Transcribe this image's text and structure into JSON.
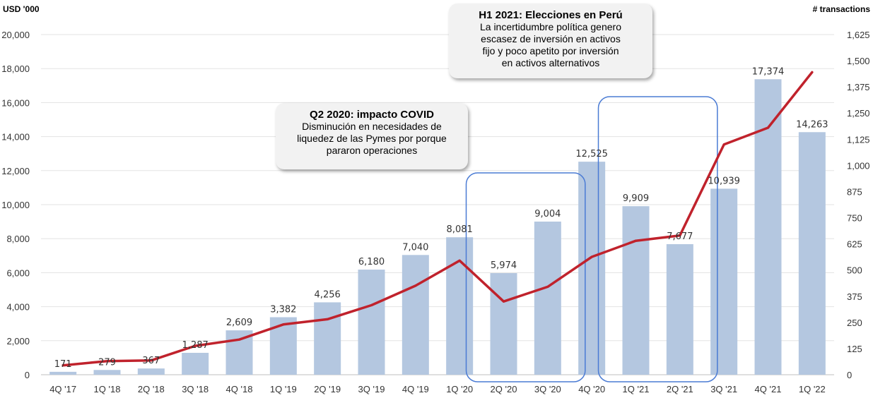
{
  "chart_data": {
    "type": "bar",
    "left_axis_label": "USD '000",
    "right_axis_label": "# transactions",
    "categories": [
      "4Q '17",
      "1Q '18",
      "2Q '18",
      "3Q '18",
      "4Q '18",
      "1Q '19",
      "2Q '19",
      "3Q '19",
      "4Q '19",
      "1Q '20",
      "2Q '20",
      "3Q '20",
      "4Q '20",
      "1Q '21",
      "2Q '21",
      "3Q '21",
      "4Q '21",
      "1Q '22"
    ],
    "series": [
      {
        "type": "bar",
        "axis": "left",
        "color": "#b4c7e0",
        "values": [
          171,
          279,
          367,
          1287,
          2609,
          3382,
          4256,
          6180,
          7040,
          8081,
          5974,
          9004,
          12525,
          9909,
          7677,
          10939,
          17374,
          14263
        ],
        "labels": [
          "171",
          "279",
          "367",
          "1,287",
          "2,609",
          "3,382",
          "4,256",
          "6,180",
          "7,040",
          "8,081",
          "5,974",
          "9,004",
          "12,525",
          "9,909",
          "7,677",
          "10,939",
          "17,374",
          "14,263"
        ]
      },
      {
        "type": "line",
        "axis": "right",
        "color": "#c0222c",
        "values": [
          45,
          65,
          68,
          138,
          168,
          240,
          265,
          332,
          425,
          545,
          350,
          420,
          563,
          640,
          665,
          1100,
          1180,
          1445
        ]
      }
    ],
    "y_left": {
      "min": 0,
      "max": 20000,
      "ticks": [
        "0",
        "2,000",
        "4,000",
        "6,000",
        "8,000",
        "10,000",
        "12,000",
        "14,000",
        "16,000",
        "18,000",
        "20,000"
      ]
    },
    "y_right": {
      "min": 0,
      "max": 1625,
      "ticks": [
        "0",
        "125",
        "250",
        "375",
        "500",
        "625",
        "750",
        "875",
        "1,000",
        "1,125",
        "1,250",
        "1,375",
        "1,500",
        "1,625"
      ]
    },
    "grid": true,
    "highlight_color": "#4a7bd4",
    "highlight_groups": [
      [
        "2Q '20",
        "3Q '20"
      ],
      [
        "1Q '21",
        "2Q '21"
      ]
    ]
  },
  "annotations": {
    "covid": {
      "title": "Q2 2020: impacto COVID",
      "lines": [
        "Disminución en necesidades de",
        "liquedez de las Pymes por porque",
        "pararon operaciones"
      ]
    },
    "elections": {
      "title": "H1 2021: Elecciones en Perú",
      "lines": [
        "La incertidumbre política genero",
        "escasez de inversión en activos",
        "fijo y poco apetito por inversión",
        "en activos alternativos"
      ]
    }
  }
}
